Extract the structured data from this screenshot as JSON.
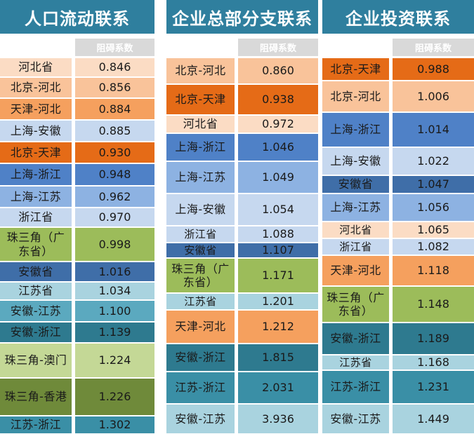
{
  "header_label": "阻碍系数",
  "colors": {
    "title_bg": "#2f7f9e",
    "header_bg": "#d9d9d9",
    "palette": {
      "orange_dark": "#e56b17",
      "orange": "#f5a05e",
      "orange_light": "#f9c39a",
      "peach": "#fbdcc4",
      "blue_dark": "#4f81c7",
      "blue": "#8db2e2",
      "blue_light": "#c6d8ef",
      "navy": "#3f6ea8",
      "green": "#9cbc5a",
      "green_light": "#c4d896",
      "green_dark": "#6f8a3a",
      "teal": "#3a8fa6",
      "teal_dark": "#2e7a8f",
      "teal_light": "#a9d3df",
      "teal_mid": "#5ba9bf"
    }
  },
  "panels": [
    {
      "title": "人口流动联系",
      "rows": [
        {
          "name": "河北省",
          "value": "0.846",
          "color": "peach"
        },
        {
          "name": "北京-河北",
          "value": "0.856",
          "color": "orange_light"
        },
        {
          "name": "天津-河北",
          "value": "0.884",
          "color": "orange"
        },
        {
          "name": "上海-安徽",
          "value": "0.885",
          "color": "blue_light"
        },
        {
          "name": "北京-天津",
          "value": "0.930",
          "color": "orange_dark"
        },
        {
          "name": "上海-浙江",
          "value": "0.948",
          "color": "blue_dark"
        },
        {
          "name": "上海-江苏",
          "value": "0.962",
          "color": "blue"
        },
        {
          "name": "浙江省",
          "value": "0.970",
          "color": "blue_light"
        },
        {
          "name": "珠三角（广东省）",
          "value": "0.998",
          "color": "green"
        },
        {
          "name": "安徽省",
          "value": "1.016",
          "color": "navy"
        },
        {
          "name": "江苏省",
          "value": "1.034",
          "color": "teal_light"
        },
        {
          "name": "安徽-江苏",
          "value": "1.100",
          "color": "teal_mid"
        },
        {
          "name": "安徽-浙江",
          "value": "1.139",
          "color": "teal_dark"
        },
        {
          "name": "珠三角-澳门",
          "value": "1.224",
          "color": "green_light"
        },
        {
          "name": "珠三角-香港",
          "value": "1.226",
          "color": "green_dark"
        },
        {
          "name": "江苏-浙江",
          "value": "1.302",
          "color": "teal"
        }
      ]
    },
    {
      "title": "企业总部分支联系",
      "rows": [
        {
          "name": "北京-河北",
          "value": "0.860",
          "color": "orange_light"
        },
        {
          "name": "北京-天津",
          "value": "0.938",
          "color": "orange_dark"
        },
        {
          "name": "河北省",
          "value": "0.972",
          "color": "peach"
        },
        {
          "name": "上海-浙江",
          "value": "1.046",
          "color": "blue_dark"
        },
        {
          "name": "上海-江苏",
          "value": "1.049",
          "color": "blue"
        },
        {
          "name": "上海-安徽",
          "value": "1.054",
          "color": "blue_light"
        },
        {
          "name": "浙江省",
          "value": "1.088",
          "color": "blue_light"
        },
        {
          "name": "安徽省",
          "value": "1.107",
          "color": "navy"
        },
        {
          "name": "珠三角（广东省）",
          "value": "1.171",
          "color": "green"
        },
        {
          "name": "江苏省",
          "value": "1.201",
          "color": "teal_light"
        },
        {
          "name": "天津-河北",
          "value": "1.212",
          "color": "orange"
        },
        {
          "name": "安徽-浙江",
          "value": "1.815",
          "color": "teal_dark"
        },
        {
          "name": "江苏-浙江",
          "value": "2.031",
          "color": "teal"
        },
        {
          "name": "安徽-江苏",
          "value": "3.936",
          "color": "teal_light"
        }
      ]
    },
    {
      "title": "企业投资联系",
      "rows": [
        {
          "name": "北京-天津",
          "value": "0.988",
          "color": "orange_dark"
        },
        {
          "name": "北京-河北",
          "value": "1.006",
          "color": "orange_light"
        },
        {
          "name": "上海-浙江",
          "value": "1.014",
          "color": "blue_dark"
        },
        {
          "name": "上海-安徽",
          "value": "1.022",
          "color": "blue_light"
        },
        {
          "name": "安徽省",
          "value": "1.047",
          "color": "navy"
        },
        {
          "name": "上海-江苏",
          "value": "1.056",
          "color": "blue"
        },
        {
          "name": "河北省",
          "value": "1.065",
          "color": "peach"
        },
        {
          "name": "浙江省",
          "value": "1.082",
          "color": "blue_light"
        },
        {
          "name": "天津-河北",
          "value": "1.118",
          "color": "orange"
        },
        {
          "name": "珠三角（广东省）",
          "value": "1.148",
          "color": "green"
        },
        {
          "name": "安徽-浙江",
          "value": "1.189",
          "color": "teal_dark"
        },
        {
          "name": "江苏省",
          "value": "1.168",
          "color": "teal_light"
        },
        {
          "name": "江苏-浙江",
          "value": "1.231",
          "color": "teal"
        },
        {
          "name": "安徽-江苏",
          "value": "1.449",
          "color": "teal_light"
        }
      ]
    }
  ]
}
